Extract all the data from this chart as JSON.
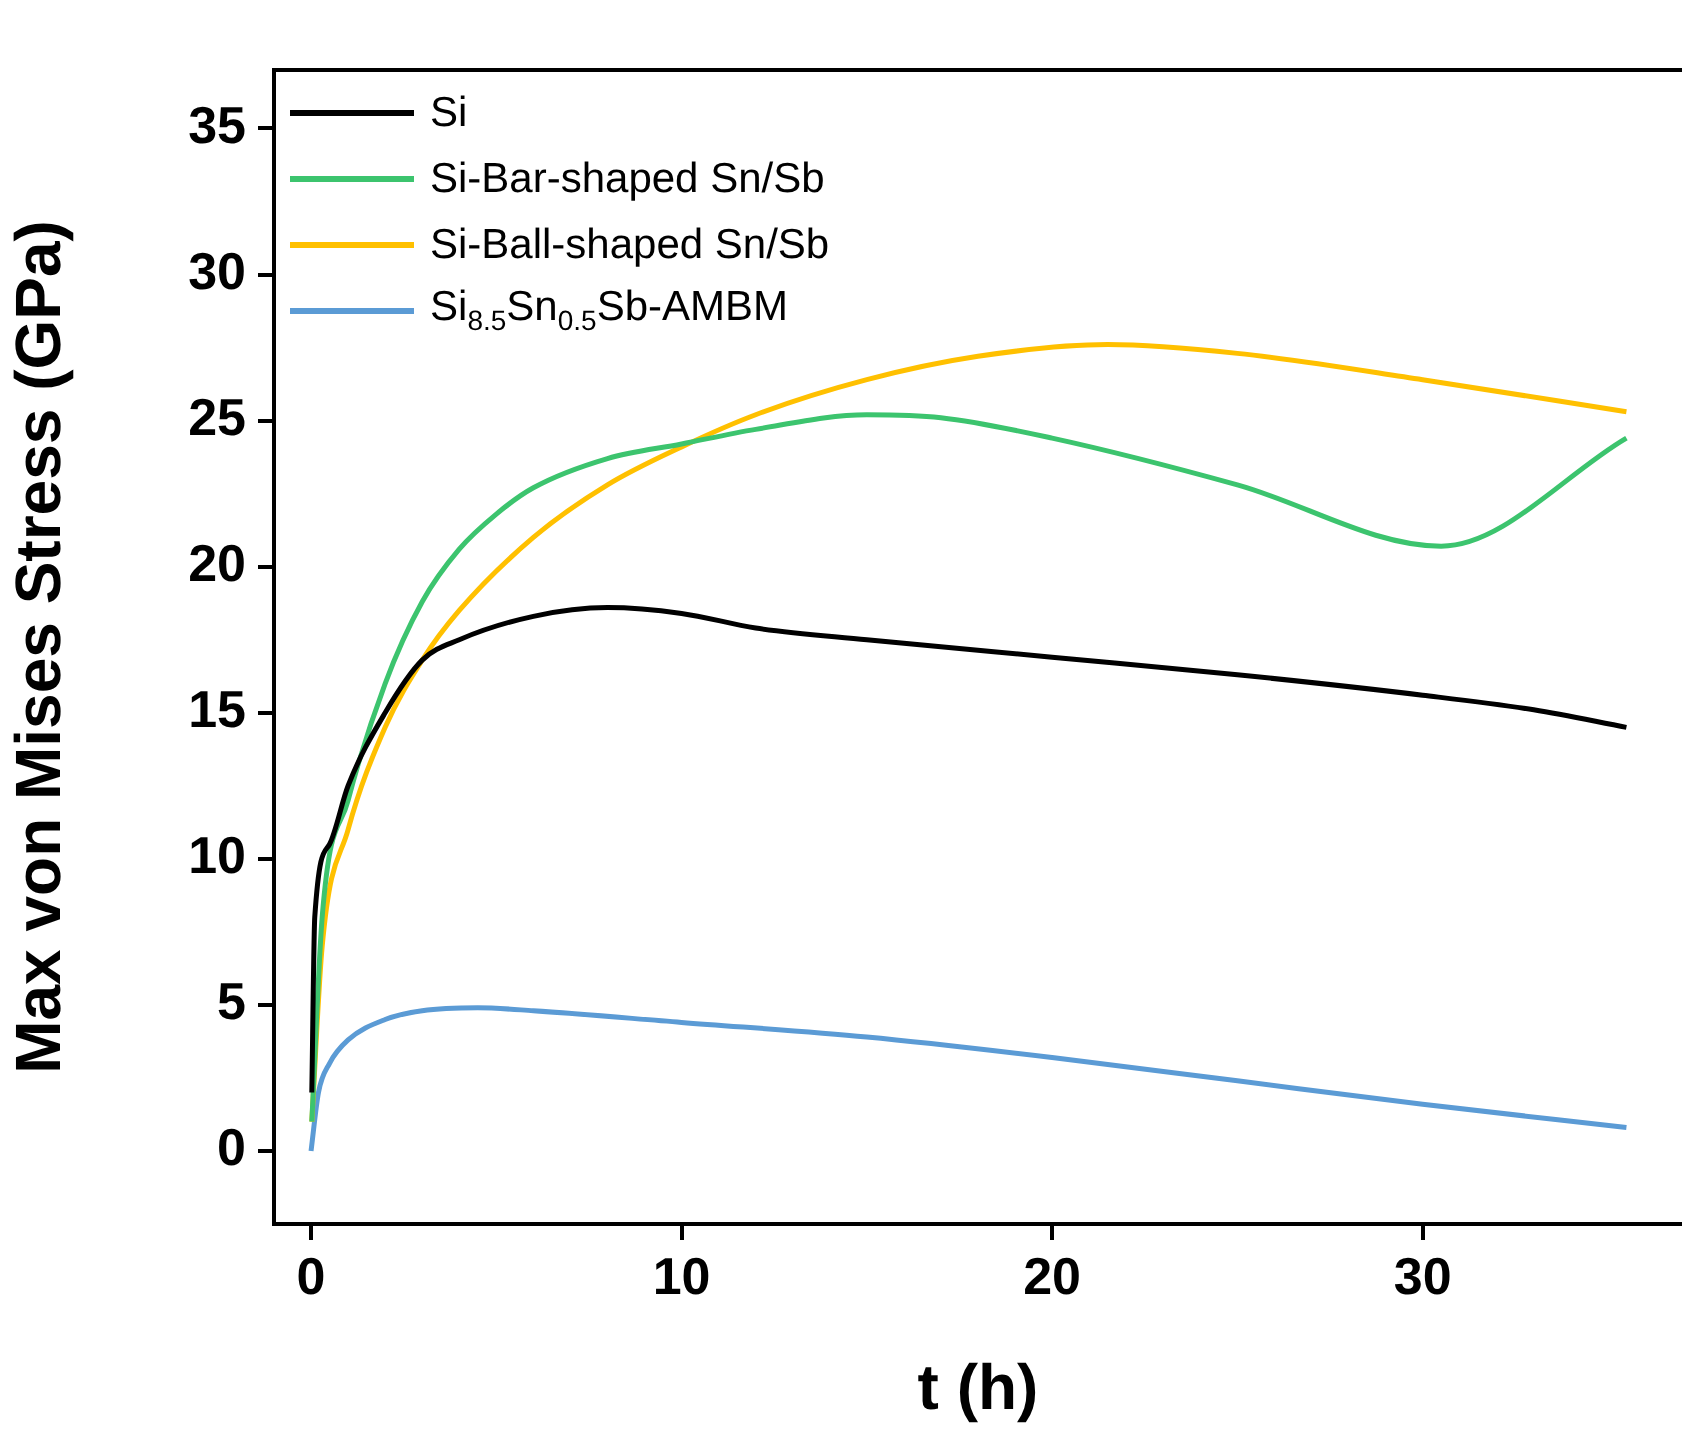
{
  "chart_data": {
    "type": "line",
    "xlabel": "t (h)",
    "ylabel": "Max von Mises Stress (GPa)",
    "xlim": [
      -1,
      37
    ],
    "ylim": [
      -2.5,
      37
    ],
    "xticks": [
      0,
      10,
      20,
      30
    ],
    "yticks": [
      0,
      5,
      10,
      15,
      20,
      25,
      30,
      35
    ],
    "grid": false,
    "legend": "top left",
    "marker": "none",
    "line_style": "solid",
    "series": [
      {
        "name": "Si",
        "color": "#000000",
        "x": [
          0.02,
          0.1,
          0.5,
          1,
          2,
          3,
          4,
          6,
          8,
          10,
          12,
          15,
          20,
          25,
          30,
          33,
          35.5
        ],
        "values": [
          2,
          8,
          10.5,
          12.5,
          15,
          16.8,
          17.5,
          18.3,
          18.6,
          18.4,
          17.9,
          17.5,
          16.9,
          16.3,
          15.6,
          15.1,
          14.5
        ]
      },
      {
        "name": "Si-Bar-shaped Sn/Sb",
        "color": "#3cc46e",
        "x": [
          0.02,
          0.3,
          1,
          2,
          3,
          4,
          5,
          6,
          8,
          10,
          12,
          15,
          17,
          20,
          25,
          30.5,
          35.5
        ],
        "values": [
          1,
          8,
          12,
          16,
          18.8,
          20.6,
          21.8,
          22.7,
          23.7,
          24.2,
          24.7,
          25.2,
          25.1,
          24.4,
          22.8,
          20.7,
          24.4
        ]
      },
      {
        "name": "Si-Ball-shaped Sn/Sb",
        "color": "#ffc000",
        "x": [
          0.02,
          0.3,
          1,
          2,
          3,
          4,
          6,
          8,
          10,
          12,
          15,
          18,
          21.5,
          25,
          30,
          35.5
        ],
        "values": [
          1,
          7,
          11,
          14.5,
          16.8,
          18.5,
          21,
          22.8,
          24.1,
          25.2,
          26.4,
          27.2,
          27.6,
          27.3,
          26.4,
          25.3
        ]
      },
      {
        "name": "Si$_{8.5}$Sn$_{0.5}$Sb-AMBM",
        "color": "#5b9bd5",
        "x": [
          0,
          0.2,
          0.5,
          1,
          2,
          3,
          4.5,
          6,
          10,
          15,
          20,
          25,
          30,
          35.5
        ],
        "values": [
          0,
          2,
          3,
          3.8,
          4.5,
          4.8,
          4.9,
          4.8,
          4.4,
          3.9,
          3.2,
          2.4,
          1.6,
          0.8
        ]
      }
    ]
  }
}
